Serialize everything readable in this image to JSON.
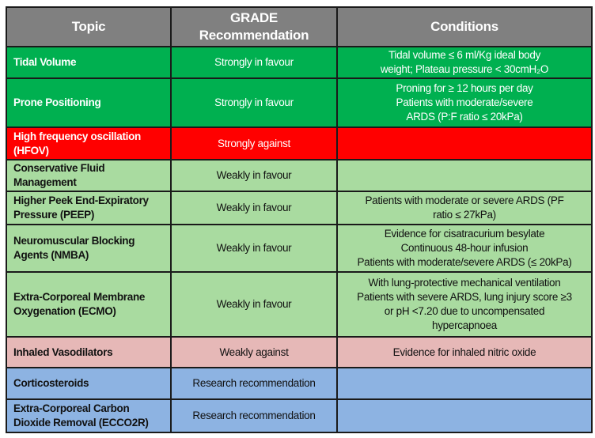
{
  "header": {
    "topic": "Topic",
    "recommendation": "GRADE Recommendation",
    "conditions": "Conditions"
  },
  "colors": {
    "header": "#808080",
    "strong_in_favour": "#00b050",
    "strong_against": "#ff0000",
    "weak_in_favour": "#a9dba0",
    "weak_against": "#e6b8b7",
    "research": "#8db3e2"
  },
  "rows": [
    {
      "topic": "Tidal Volume",
      "recommendation": "Strongly in favour",
      "category": "strong-green",
      "conditions": [
        "Tidal volume ≤ 6 ml/Kg ideal body",
        "weight; Plateau pressure < 30cmH₂O"
      ]
    },
    {
      "topic": "Prone Positioning",
      "recommendation": "Strongly in favour",
      "category": "strong-green",
      "conditions": [
        "Proning for ≥ 12 hours per day",
        "Patients with moderate/severe",
        "ARDS (P:F ratio ≤ 20kPa)"
      ]
    },
    {
      "topic": "High frequency oscillation (HFOV)",
      "recommendation": "Strongly against",
      "category": "strong-red",
      "conditions": []
    },
    {
      "topic": "Conservative Fluid Management",
      "recommendation": "Weakly in favour",
      "category": "weak-green",
      "conditions": []
    },
    {
      "topic": "Higher Peek End-Expiratory Pressure (PEEP)",
      "recommendation": "Weakly in favour",
      "category": "weak-green",
      "conditions": [
        "Patients with moderate or severe ARDS (PF",
        "ratio ≤ 27kPa)"
      ]
    },
    {
      "topic": "Neuromuscular Blocking Agents (NMBA)",
      "recommendation": "Weakly in favour",
      "category": "weak-green",
      "conditions": [
        "Evidence for cisatracurium besylate",
        "Continuous 48-hour infusion",
        "Patients with moderate/severe ARDS (≤ 20kPa)"
      ]
    },
    {
      "topic": "Extra-Corporeal Membrane Oxygenation (ECMO)",
      "recommendation": "Weakly in favour",
      "category": "weak-green",
      "conditions": [
        "With lung-protective mechanical ventilation",
        "Patients with severe ARDS, lung injury score ≥3",
        "or pH <7.20 due to uncompensated",
        "hypercapnoea"
      ]
    },
    {
      "topic": "Inhaled Vasodilators",
      "recommendation": "Weakly against",
      "category": "weak-red",
      "conditions": [
        "Evidence for inhaled nitric oxide"
      ]
    },
    {
      "topic": "Corticosteroids",
      "recommendation": "Research recommendation",
      "category": "research",
      "conditions": []
    },
    {
      "topic": "Extra-Corporeal Carbon Dioxide Removal (ECCO2R)",
      "recommendation": "Research recommendation",
      "category": "research",
      "conditions": []
    }
  ]
}
